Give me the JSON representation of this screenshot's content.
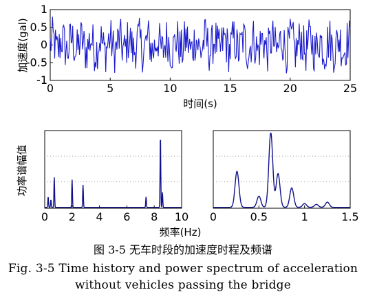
{
  "chart_data": [
    {
      "type": "line",
      "xlabel": "时间(s)",
      "ylabel": "加速度(gal)",
      "xlim": [
        0,
        25
      ],
      "ylim": [
        -1,
        1
      ],
      "xticks": [
        "0",
        "5",
        "10",
        "15",
        "20",
        "25"
      ],
      "yticks": [
        "1",
        "0.5",
        "0",
        "-0.5",
        "-1"
      ],
      "series_color": "#1a1acc",
      "grid": false,
      "signal": {
        "note_visible": "dense random vibration, amplitude about ±0.7 gal",
        "samples": 400,
        "amplitude": 0.7
      }
    },
    {
      "type": "line",
      "ylabel": "功率谱幅值",
      "xlim": [
        0,
        10
      ],
      "xticks": [
        "0",
        "2",
        "4",
        "6",
        "8",
        "10"
      ],
      "series_color": "#10108a",
      "grid": "dotted-horizontal",
      "peaks": [
        {
          "x": 0.25,
          "y": 0.14
        },
        {
          "x": 0.45,
          "y": 0.1
        },
        {
          "x": 0.7,
          "y": 0.4
        },
        {
          "x": 2.0,
          "y": 0.37
        },
        {
          "x": 2.8,
          "y": 0.3
        },
        {
          "x": 7.4,
          "y": 0.14
        },
        {
          "x": 8.45,
          "y": 0.97
        },
        {
          "x": 8.6,
          "y": 0.2
        }
      ]
    },
    {
      "type": "line",
      "xlim": [
        0,
        1.5
      ],
      "xticks": [
        "0",
        "0.5",
        "1",
        "1.5"
      ],
      "series_color": "#10108a",
      "grid": "dotted-horizontal",
      "peaks": [
        {
          "x": 0.26,
          "y": 0.48
        },
        {
          "x": 0.5,
          "y": 0.15
        },
        {
          "x": 0.63,
          "y": 1.0
        },
        {
          "x": 0.71,
          "y": 0.45
        },
        {
          "x": 0.86,
          "y": 0.26
        },
        {
          "x": 1.0,
          "y": 0.05
        },
        {
          "x": 1.13,
          "y": 0.04
        },
        {
          "x": 1.25,
          "y": 0.07
        }
      ]
    }
  ],
  "bottom_xlabel": "频率(Hz)",
  "caption": {
    "zh": "图  3-5  无车时段的加速度时程及频谱",
    "en_line1": "Fig. 3-5 Time history and power spectrum of acceleration",
    "en_line2": "without vehicles passing the bridge"
  }
}
